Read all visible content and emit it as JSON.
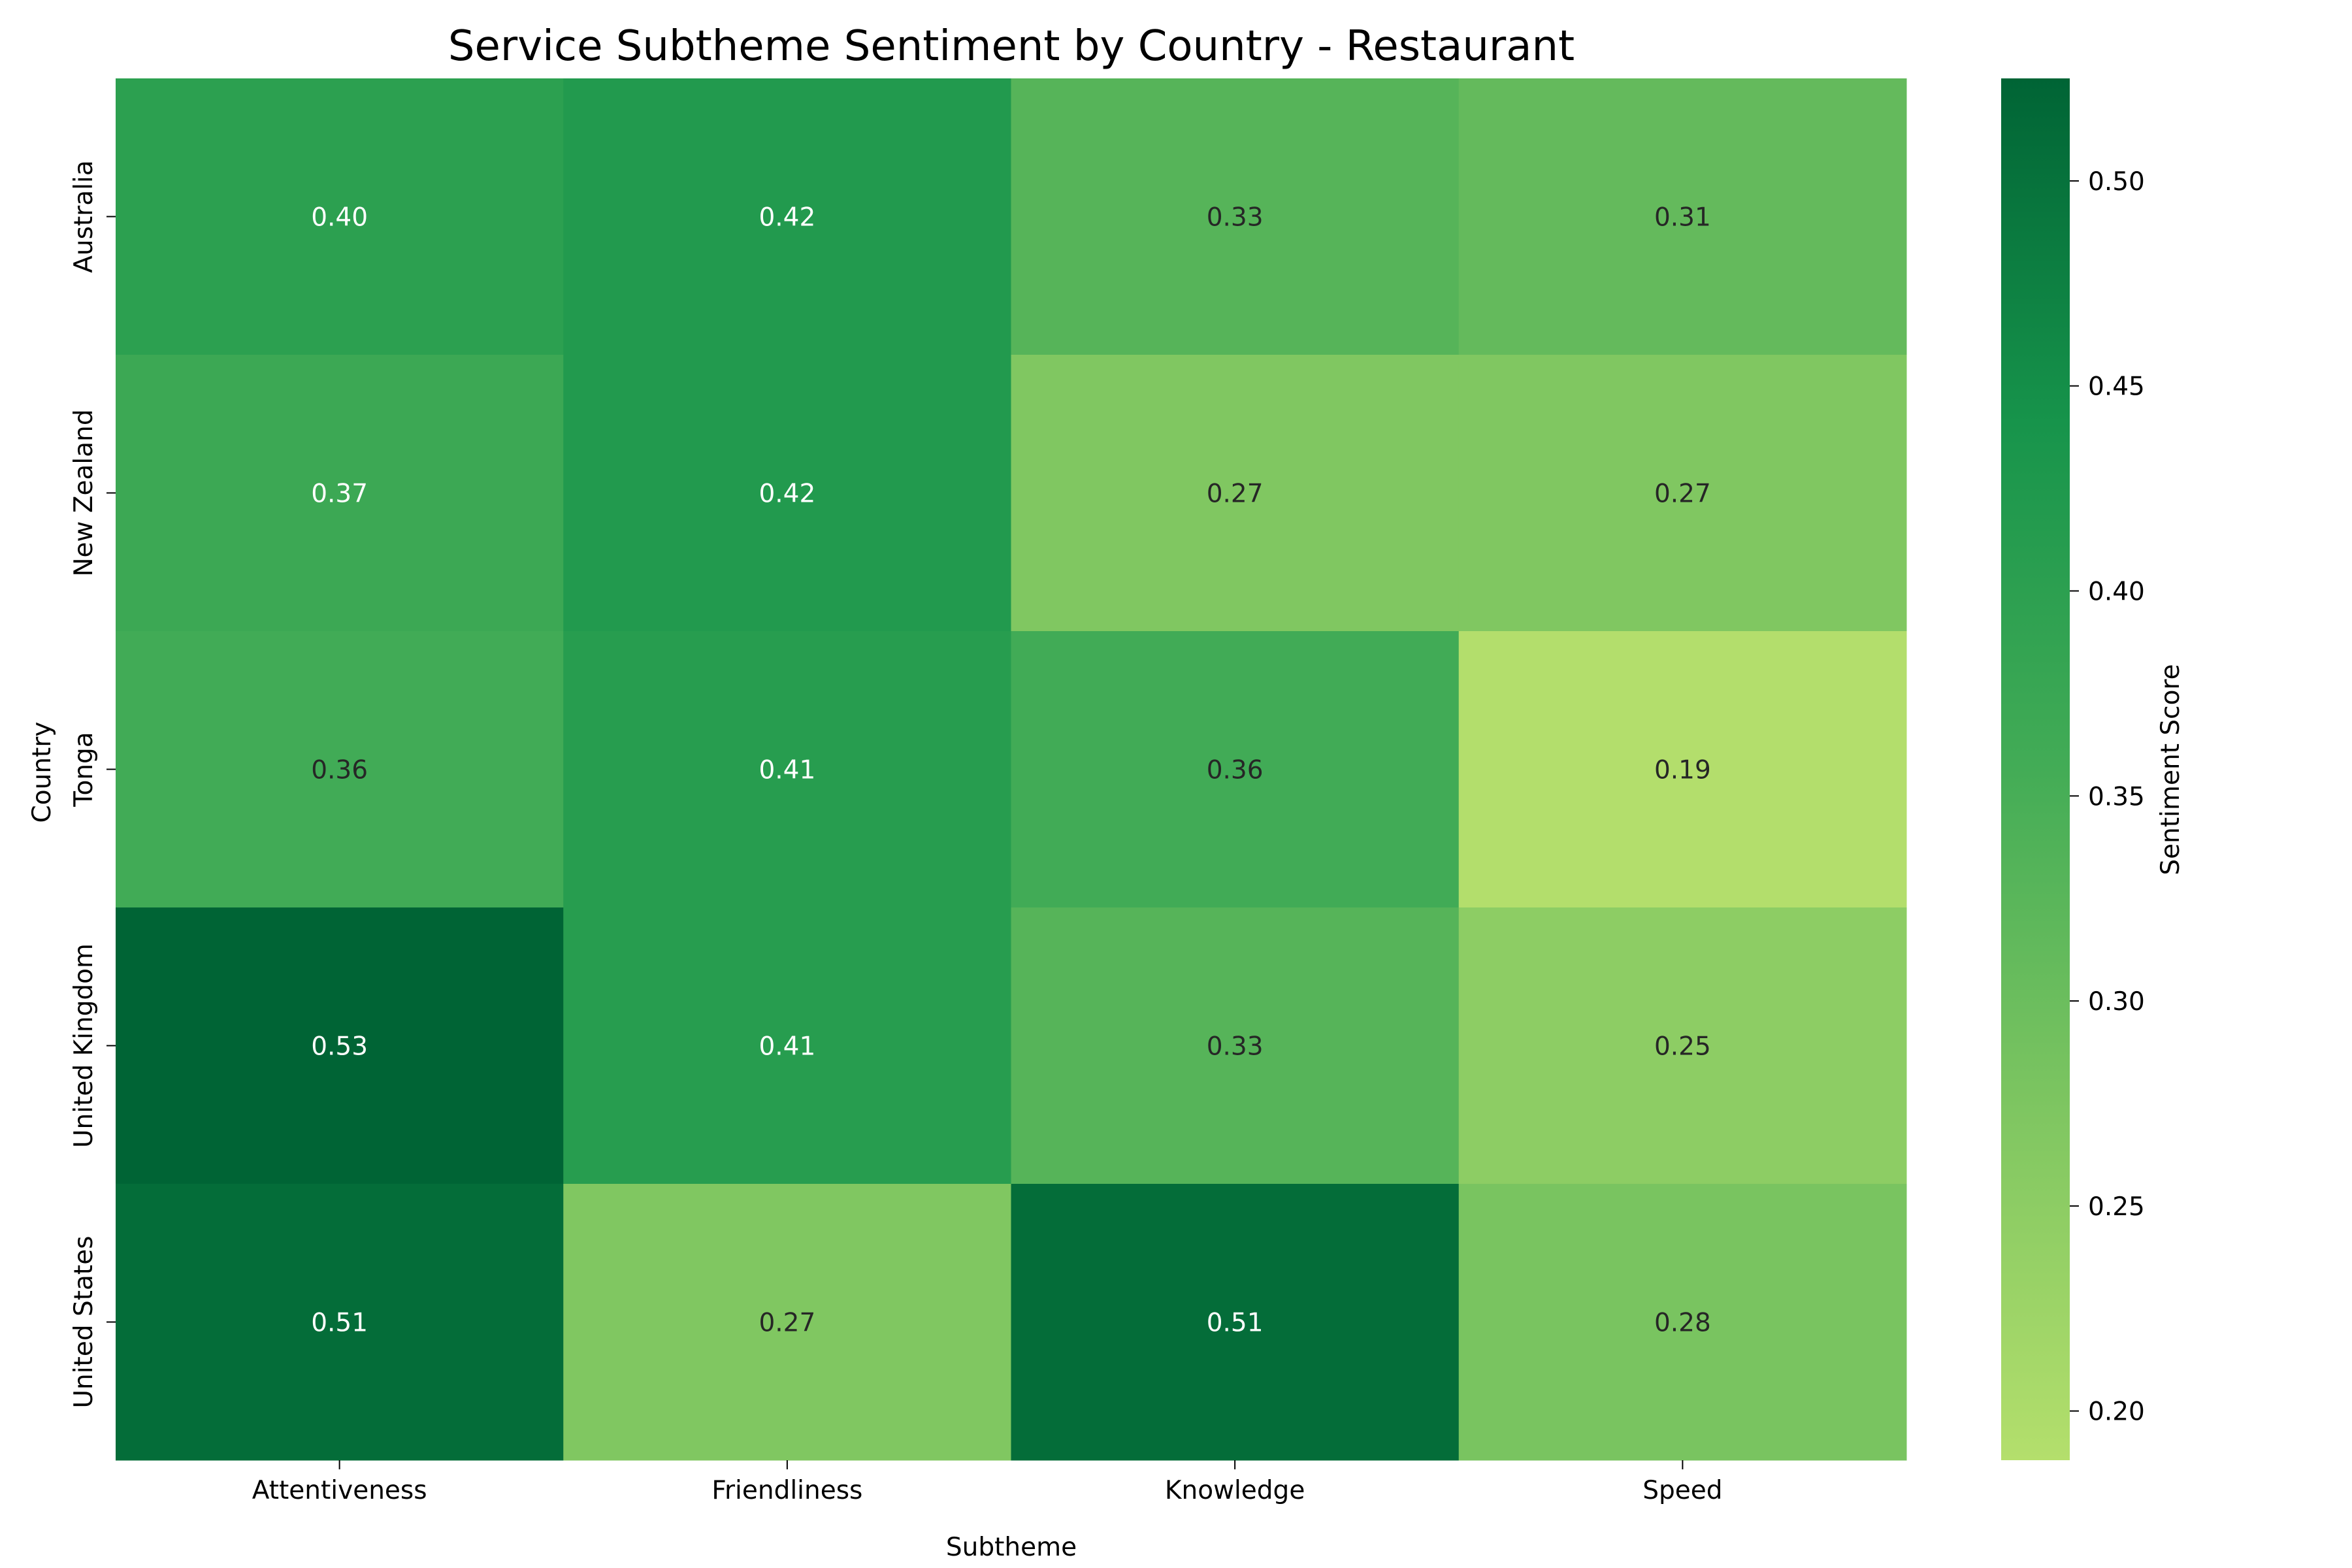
{
  "chart_data": {
    "type": "heatmap",
    "title": "Service Subtheme Sentiment by Country - Restaurant",
    "xlabel": "Subtheme",
    "ylabel": "Country",
    "x_categories": [
      "Attentiveness",
      "Friendliness",
      "Knowledge",
      "Speed"
    ],
    "y_categories": [
      "Australia",
      "New Zealand",
      "Tonga",
      "United Kingdom",
      "United States"
    ],
    "values": [
      [
        0.4,
        0.42,
        0.33,
        0.31
      ],
      [
        0.37,
        0.42,
        0.27,
        0.27
      ],
      [
        0.36,
        0.41,
        0.36,
        0.19
      ],
      [
        0.53,
        0.41,
        0.33,
        0.25
      ],
      [
        0.51,
        0.27,
        0.51,
        0.28
      ]
    ],
    "value_format": "0.00",
    "colorbar": {
      "label": "Sentiment Score",
      "range": [
        0.188,
        0.525
      ],
      "ticks": [
        0.2,
        0.25,
        0.3,
        0.35,
        0.4,
        0.45,
        0.5
      ],
      "tick_labels": [
        "0.20",
        "0.25",
        "0.30",
        "0.35",
        "0.40",
        "0.45",
        "0.50"
      ]
    },
    "colormap": {
      "name": "YlGn (upper range)",
      "stops": [
        "#b4df6c",
        "#7fc661",
        "#43ac56",
        "#17944b",
        "#006435"
      ]
    },
    "grid": false
  }
}
